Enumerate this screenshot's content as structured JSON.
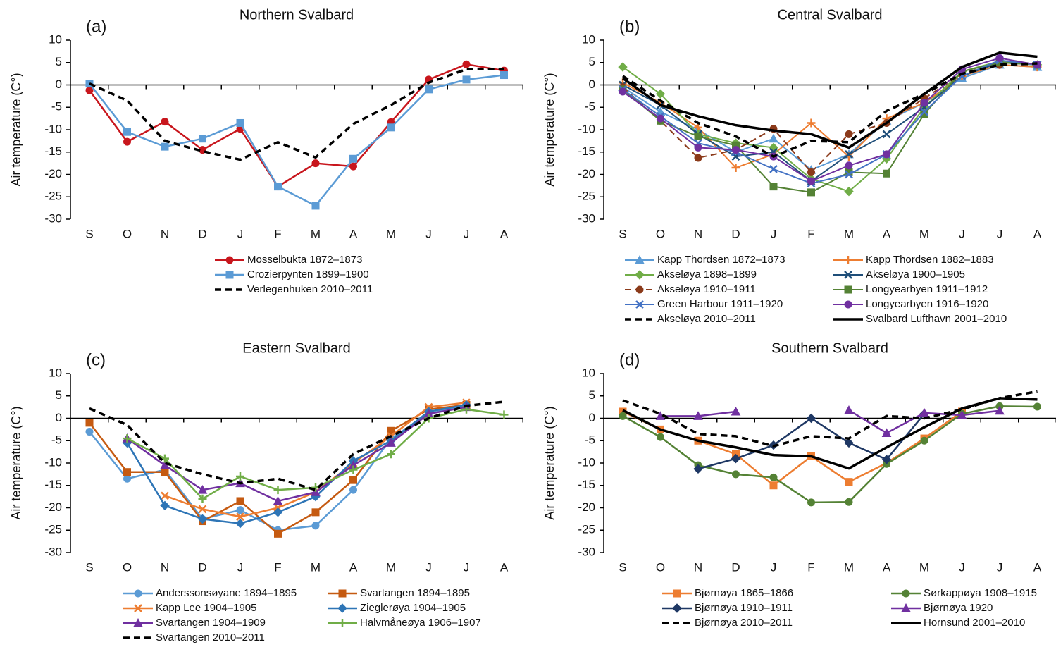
{
  "chart_data": [
    {
      "type": "line",
      "label": "(a)",
      "title": "Northern Svalbard",
      "y_label": "Air temperature (C°)",
      "categories": [
        "S",
        "O",
        "N",
        "D",
        "J",
        "F",
        "M",
        "A",
        "M",
        "J",
        "J",
        "A"
      ],
      "ylim": [
        -30,
        10
      ],
      "yticks": [
        10,
        5,
        0,
        -5,
        -10,
        -15,
        -20,
        -25,
        -30
      ],
      "series": [
        {
          "name": "Mosselbukta 1872–1873",
          "color": "#c8161d",
          "marker": "circle",
          "style": "solid",
          "line_width": 2.5,
          "values": [
            -1.2,
            -12.7,
            -8.2,
            -14.5,
            -9.8,
            -22.7,
            -17.5,
            -18.2,
            -8.3,
            1.2,
            4.6,
            3.2
          ]
        },
        {
          "name": "Crozierpynten 1899–1900",
          "color": "#5b9bd5",
          "marker": "square",
          "style": "solid",
          "line_width": 2.5,
          "values": [
            0.3,
            -10.5,
            -13.8,
            -12,
            -8.5,
            -22.7,
            -27,
            -16.5,
            -9.5,
            -1,
            1.2,
            2.2
          ]
        },
        {
          "name": "Verlegenhuken 2010–2011",
          "color": "#000000",
          "marker": "none",
          "style": "dashed",
          "line_width": 3.5,
          "values": [
            0.3,
            -3.5,
            -12.5,
            -14.8,
            -16.7,
            -12.8,
            -16.2,
            -8.7,
            -4.5,
            0.5,
            3.5,
            3.6
          ]
        }
      ]
    },
    {
      "type": "line",
      "label": "(b)",
      "title": "Central Svalbard",
      "y_label": "Air temperature (C°)",
      "categories": [
        "S",
        "O",
        "N",
        "D",
        "J",
        "F",
        "M",
        "A",
        "M",
        "J",
        "J",
        "A"
      ],
      "ylim": [
        -30,
        10
      ],
      "yticks": [
        10,
        5,
        0,
        -5,
        -10,
        -15,
        -20,
        -25,
        -30
      ],
      "series": [
        {
          "name": "Kapp Thordsen 1872–1873",
          "color": "#5b9bd5",
          "marker": "triangle",
          "style": "solid",
          "line_width": 2,
          "values": [
            -0.5,
            -6,
            -10,
            -15,
            -12,
            -19,
            -15.5,
            -8,
            -4,
            1.5,
            4.5,
            4
          ]
        },
        {
          "name": "Kapp Thordsen 1882–1883",
          "color": "#ed7d31",
          "marker": "plus",
          "style": "solid",
          "line_width": 2,
          "values": [
            0.5,
            -4,
            -9.5,
            -18.5,
            -15.5,
            -8.5,
            -16,
            -7.5,
            -4,
            2,
            4.5,
            4
          ]
        },
        {
          "name": "Akseløya 1898–1899",
          "color": "#70ad47",
          "marker": "diamond",
          "style": "solid",
          "line_width": 2,
          "values": [
            4,
            -2,
            -11,
            -13,
            -14,
            -21,
            -23.8,
            -16.5,
            -5,
            3,
            5.3,
            4.5
          ]
        },
        {
          "name": "Akseløya 1900–1905",
          "color": "#1f4e79",
          "marker": "x",
          "style": "solid",
          "line_width": 2,
          "values": [
            0,
            -4.5,
            -11,
            -16,
            -15,
            -21.5,
            -15.5,
            -11,
            -5,
            2,
            5,
            4.5
          ]
        },
        {
          "name": "Akseløya 1910–1911",
          "color": "#8b3a1a",
          "marker": "circle",
          "style": "dashed",
          "line_width": 2,
          "values": [
            -0.5,
            -8,
            -16.3,
            -14.5,
            -9.8,
            -19.5,
            -11,
            -8.5,
            -3,
            2.5,
            4.5,
            4.5
          ]
        },
        {
          "name": "Longyearbyen 1911–1912",
          "color": "#548235",
          "marker": "square",
          "style": "solid",
          "line_width": 2,
          "values": [
            -1,
            -8,
            -11.5,
            -13.5,
            -22.7,
            -24,
            -19.5,
            -19.8,
            -6.5,
            3,
            5,
            4.5
          ]
        },
        {
          "name": "Green Harbour 1911–1920",
          "color": "#4472c4",
          "marker": "x",
          "style": "solid",
          "line_width": 2,
          "values": [
            -1,
            -7,
            -13,
            -15,
            -18.8,
            -22,
            -20,
            -15.5,
            -6,
            2,
            5.5,
            4.5
          ]
        },
        {
          "name": "Longyearbyen 1916–1920",
          "color": "#7030a0",
          "marker": "circle",
          "style": "solid",
          "line_width": 2,
          "values": [
            -1.5,
            -7.5,
            -14,
            -14.5,
            -16,
            -21.5,
            -18,
            -15.5,
            -4,
            3.5,
            6,
            4.5
          ]
        },
        {
          "name": "Akseløya 2010–2011",
          "color": "#000000",
          "marker": "none",
          "style": "dashed",
          "line_width": 3.5,
          "values": [
            2,
            -3.5,
            -8.5,
            -11.5,
            -16,
            -12.5,
            -12.8,
            -5.8,
            -2,
            2.5,
            4.5,
            4.8
          ]
        },
        {
          "name": "Svalbard Lufthavn 2001–2010",
          "color": "#000000",
          "marker": "none",
          "style": "solid",
          "line_width": 3.5,
          "values": [
            1.5,
            -4.5,
            -7,
            -9,
            -10.2,
            -11,
            -14,
            -8.5,
            -2,
            4,
            7.2,
            6.3
          ]
        }
      ]
    },
    {
      "type": "line",
      "label": "(c)",
      "title": "Eastern Svalbard",
      "y_label": "Air temperature (C°)",
      "categories": [
        "S",
        "O",
        "N",
        "D",
        "J",
        "F",
        "M",
        "A",
        "M",
        "J",
        "J",
        "A"
      ],
      "ylim": [
        -30,
        10
      ],
      "yticks": [
        10,
        5,
        0,
        -5,
        -10,
        -15,
        -20,
        -25,
        -30
      ],
      "series": [
        {
          "name": "Anderssonsøyane 1894–1895",
          "color": "#5b9bd5",
          "marker": "circle",
          "style": "solid",
          "line_width": 2.5,
          "values": [
            -3,
            -13.5,
            -11.5,
            -22.5,
            -20.5,
            -25,
            -24,
            -16,
            -4.5,
            1,
            3,
            null
          ]
        },
        {
          "name": "Svartangen 1894–1895",
          "color": "#c55a11",
          "marker": "square",
          "style": "solid",
          "line_width": 2.5,
          "values": [
            -1,
            -12,
            -12,
            -23,
            -18.5,
            -25.8,
            -21,
            -13.8,
            -2.8,
            2,
            3,
            null
          ]
        },
        {
          "name": "Kapp Lee 1904–1905",
          "color": "#ed7d31",
          "marker": "x",
          "style": "solid",
          "line_width": 2.5,
          "values": [
            null,
            null,
            -17.3,
            -20.3,
            -22,
            -20,
            -16.5,
            -10,
            -4,
            2.5,
            3.5,
            null
          ]
        },
        {
          "name": "Zieglerøya 1904–1905",
          "color": "#2e75b6",
          "marker": "diamond",
          "style": "solid",
          "line_width": 2.5,
          "values": [
            null,
            -5.5,
            -19.5,
            -22.5,
            -23.5,
            -21,
            -17.5,
            -9.5,
            -5,
            1.5,
            3,
            null
          ]
        },
        {
          "name": "Svartangen 1904–1909",
          "color": "#7030a0",
          "marker": "triangle",
          "style": "solid",
          "line_width": 2.5,
          "values": [
            null,
            -4.5,
            -10.5,
            -16,
            -14.5,
            -18.5,
            -16.5,
            -10.5,
            -5.5,
            1,
            2.5,
            null
          ]
        },
        {
          "name": "Halvmåneøya 1906–1907",
          "color": "#70ad47",
          "marker": "plus",
          "style": "solid",
          "line_width": 2.5,
          "values": [
            null,
            -4.5,
            -9,
            -18,
            -13,
            -16,
            -15.5,
            -11.5,
            -8,
            0,
            2,
            0.8
          ]
        },
        {
          "name": "Svartangen 2010–2011",
          "color": "#000000",
          "marker": "none",
          "style": "dashed",
          "line_width": 3.5,
          "values": [
            2.2,
            -1.5,
            -10,
            -12.5,
            -14.5,
            -13.5,
            -16,
            -8,
            -4,
            0,
            2.8,
            3.7
          ]
        }
      ]
    },
    {
      "type": "line",
      "label": "(d)",
      "title": "Southern Svalbard",
      "y_label": "Air temperature (C°)",
      "categories": [
        "S",
        "O",
        "N",
        "D",
        "J",
        "F",
        "M",
        "A",
        "M",
        "J",
        "J",
        "A"
      ],
      "ylim": [
        -30,
        10
      ],
      "yticks": [
        10,
        5,
        0,
        -5,
        -10,
        -15,
        -20,
        -25,
        -30
      ],
      "series": [
        {
          "name": "Bjørnøya 1865–1866",
          "color": "#ed7d31",
          "marker": "square",
          "style": "solid",
          "line_width": 2.5,
          "values": [
            1.5,
            -2.5,
            -5,
            -8,
            -15,
            -8.5,
            -14.2,
            -10,
            -4.5,
            1.5,
            null,
            null
          ]
        },
        {
          "name": "Sørkappøya 1908–1915",
          "color": "#548235",
          "marker": "circle",
          "style": "solid",
          "line_width": 2.5,
          "values": [
            0.5,
            -4.2,
            -10.5,
            -12.5,
            -13.2,
            -18.8,
            -18.7,
            -10.2,
            -5,
            1,
            2.7,
            2.6
          ]
        },
        {
          "name": "Bjørnøya 1910–1911",
          "color": "#1f3864",
          "marker": "diamond",
          "style": "solid",
          "line_width": 2.5,
          "values": [
            null,
            null,
            -11.3,
            -9,
            -6,
            0,
            -5.5,
            -9.2,
            1,
            null,
            null,
            null
          ]
        },
        {
          "name": "Bjørnøya 1920",
          "color": "#7030a0",
          "marker": "triangle",
          "style": "solid",
          "line_width": 2.5,
          "values": [
            null,
            0.5,
            0.5,
            1.5,
            null,
            null,
            1.8,
            -3.3,
            1.2,
            0.7,
            1.7,
            null
          ]
        },
        {
          "name": "Bjørnøya 2010–2011",
          "color": "#000000",
          "marker": "none",
          "style": "dashed",
          "line_width": 3.5,
          "values": [
            4,
            1,
            -3.5,
            -4,
            -6.2,
            -4,
            -4.5,
            0.5,
            0,
            2,
            4.5,
            6
          ]
        },
        {
          "name": "Hornsund 2001–2010",
          "color": "#000000",
          "marker": "none",
          "style": "solid",
          "line_width": 3.5,
          "values": [
            1.8,
            -2.5,
            -5,
            -6.5,
            -8.2,
            -8.5,
            -11.2,
            -6.5,
            -2,
            2.2,
            4.5,
            4.2
          ]
        }
      ]
    }
  ]
}
